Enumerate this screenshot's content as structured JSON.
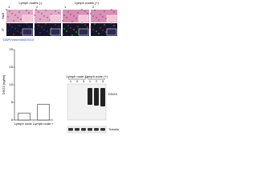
{
  "images": {
    "groups": [
      "Lymph nodes (-)",
      "Lymph nodes (+)"
    ],
    "columns": [
      "1",
      "2",
      "1",
      "2"
    ],
    "rows": [
      "H&E",
      "IF"
    ],
    "stain_legend": "DAPI/Vimentin/DSG3"
  },
  "chart_data": {
    "type": "bar",
    "y_label": "DSG3 (ng/ml)",
    "categories": [
      "Lymph node -",
      "Lymph node +"
    ],
    "values": [
      2,
      4.5
    ],
    "color": "#ffffff",
    "ylim": [
      0,
      20
    ],
    "yticks": [
      0,
      5,
      10,
      15,
      20
    ]
  },
  "blot": {
    "groups": [
      "Lymph node (-)",
      "Lymph node (+)"
    ],
    "lanes": [
      "1",
      "2",
      "3",
      "1",
      "2",
      "3"
    ],
    "proteins": [
      "DSG3",
      "Tubulin"
    ]
  }
}
